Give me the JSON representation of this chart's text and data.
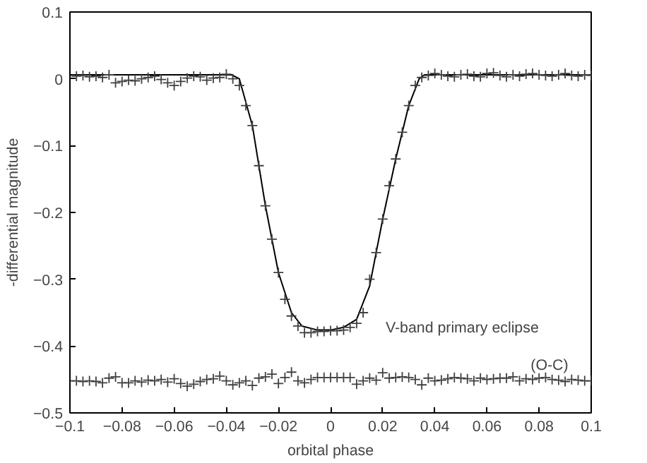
{
  "chart_data": {
    "type": "scatter",
    "xlabel": "orbital phase",
    "ylabel": "-differential magnitude",
    "xlim": [
      -0.1,
      0.1
    ],
    "ylim": [
      -0.5,
      0.1
    ],
    "xticks": [
      -0.1,
      -0.08,
      -0.06,
      -0.04,
      -0.02,
      0,
      0.02,
      0.04,
      0.06,
      0.08,
      0.1
    ],
    "yticks": [
      -0.5,
      -0.4,
      -0.3,
      -0.2,
      -0.1,
      0,
      0.1
    ],
    "grid": false,
    "marker": "cross",
    "annotations": [
      "V-band primary eclipse",
      "(O-C)"
    ],
    "series": [
      {
        "color": "#404040",
        "x": [
          -0.1,
          -0.0975,
          -0.095,
          -0.0925,
          -0.09,
          -0.0875,
          -0.085,
          -0.0825,
          -0.08,
          -0.0775,
          -0.075,
          -0.0725,
          -0.07,
          -0.0675,
          -0.065,
          -0.0625,
          -0.06,
          -0.0575,
          -0.055,
          -0.0525,
          -0.05,
          -0.0475,
          -0.045,
          -0.0425,
          -0.04,
          -0.0375,
          -0.035,
          -0.0325,
          -0.03,
          -0.0275,
          -0.025,
          -0.0225,
          -0.02,
          -0.0175,
          -0.015,
          -0.0125,
          -0.01,
          -0.0075,
          -0.005,
          -0.0025,
          0,
          0.0025,
          0.005,
          0.0075,
          0.01,
          0.0125,
          0.015,
          0.0175,
          0.02,
          0.0225,
          0.025,
          0.0275,
          0.03,
          0.0325,
          0.035,
          0.0375,
          0.04,
          0.0425,
          0.045,
          0.0475,
          0.05,
          0.0525,
          0.055,
          0.0575,
          0.06,
          0.0625,
          0.065,
          0.0675,
          0.07,
          0.0725,
          0.075,
          0.0775,
          0.08,
          0.0825,
          0.085,
          0.0875,
          0.09,
          0.0925,
          0.095,
          0.0975,
          0.1
        ],
        "values": [
          0.005,
          0.004,
          0.005,
          0.003,
          0.004,
          0.002,
          0.006,
          -0.006,
          -0.004,
          -0.002,
          -0.003,
          0.0,
          0.002,
          0.004,
          -0.001,
          -0.006,
          -0.01,
          -0.004,
          0.001,
          0.004,
          0.003,
          -0.002,
          0.001,
          0.002,
          0.007,
          0.0,
          -0.01,
          -0.04,
          -0.07,
          -0.13,
          -0.19,
          -0.24,
          -0.29,
          -0.33,
          -0.355,
          -0.37,
          -0.38,
          -0.38,
          -0.378,
          -0.378,
          -0.377,
          -0.377,
          -0.376,
          -0.372,
          -0.366,
          -0.35,
          -0.3,
          -0.26,
          -0.21,
          -0.16,
          -0.12,
          -0.08,
          -0.04,
          -0.01,
          0.002,
          0.005,
          0.008,
          0.006,
          0.004,
          0.003,
          0.006,
          0.007,
          0.004,
          0.003,
          0.008,
          0.009,
          0.005,
          0.003,
          0.006,
          0.004,
          0.007,
          0.008,
          0.006,
          0.005,
          0.004,
          0.006,
          0.008,
          0.005,
          0.004,
          0.006,
          0.005
        ]
      },
      {
        "type": "line",
        "color": "#000000",
        "marker": "none",
        "x": [
          -0.1,
          -0.038,
          -0.035,
          -0.03,
          -0.025,
          -0.02,
          -0.015,
          -0.011,
          -0.005,
          0,
          0.005,
          0.01,
          0.015,
          0.02,
          0.025,
          0.03,
          0.034,
          0.036,
          0.1
        ],
        "values": [
          0.006,
          0.006,
          0.0,
          -0.07,
          -0.19,
          -0.29,
          -0.35,
          -0.37,
          -0.376,
          -0.376,
          -0.372,
          -0.36,
          -0.31,
          -0.21,
          -0.12,
          -0.04,
          0.0,
          0.006,
          0.006
        ]
      },
      {
        "color": "#404040",
        "x": [
          -0.1,
          -0.0975,
          -0.095,
          -0.0925,
          -0.09,
          -0.0875,
          -0.085,
          -0.0825,
          -0.08,
          -0.0775,
          -0.075,
          -0.0725,
          -0.07,
          -0.0675,
          -0.065,
          -0.0625,
          -0.06,
          -0.0575,
          -0.055,
          -0.0525,
          -0.05,
          -0.0475,
          -0.045,
          -0.0425,
          -0.04,
          -0.0375,
          -0.035,
          -0.0325,
          -0.03,
          -0.0275,
          -0.025,
          -0.0225,
          -0.02,
          -0.0175,
          -0.015,
          -0.0125,
          -0.01,
          -0.0075,
          -0.005,
          -0.0025,
          0,
          0.0025,
          0.005,
          0.0075,
          0.01,
          0.0125,
          0.015,
          0.0175,
          0.02,
          0.0225,
          0.025,
          0.0275,
          0.03,
          0.0325,
          0.035,
          0.0375,
          0.04,
          0.0425,
          0.045,
          0.0475,
          0.05,
          0.0525,
          0.055,
          0.0575,
          0.06,
          0.0625,
          0.065,
          0.0675,
          0.07,
          0.0725,
          0.075,
          0.0775,
          0.08,
          0.0825,
          0.085,
          0.0875,
          0.09,
          0.0925,
          0.095,
          0.0975,
          0.1
        ],
        "values": [
          -0.452,
          -0.452,
          -0.453,
          -0.452,
          -0.453,
          -0.455,
          -0.448,
          -0.446,
          -0.455,
          -0.455,
          -0.452,
          -0.454,
          -0.451,
          -0.452,
          -0.45,
          -0.454,
          -0.449,
          -0.456,
          -0.46,
          -0.457,
          -0.453,
          -0.45,
          -0.449,
          -0.445,
          -0.452,
          -0.458,
          -0.455,
          -0.452,
          -0.459,
          -0.448,
          -0.446,
          -0.442,
          -0.456,
          -0.447,
          -0.439,
          -0.452,
          -0.455,
          -0.45,
          -0.447,
          -0.447,
          -0.447,
          -0.447,
          -0.447,
          -0.447,
          -0.457,
          -0.452,
          -0.448,
          -0.451,
          -0.44,
          -0.448,
          -0.447,
          -0.446,
          -0.447,
          -0.45,
          -0.458,
          -0.448,
          -0.452,
          -0.451,
          -0.449,
          -0.447,
          -0.448,
          -0.449,
          -0.452,
          -0.448,
          -0.45,
          -0.449,
          -0.448,
          -0.448,
          -0.446,
          -0.452,
          -0.449,
          -0.45,
          -0.448,
          -0.447,
          -0.45,
          -0.451,
          -0.453,
          -0.45,
          -0.451,
          -0.452,
          -0.452
        ]
      }
    ]
  }
}
